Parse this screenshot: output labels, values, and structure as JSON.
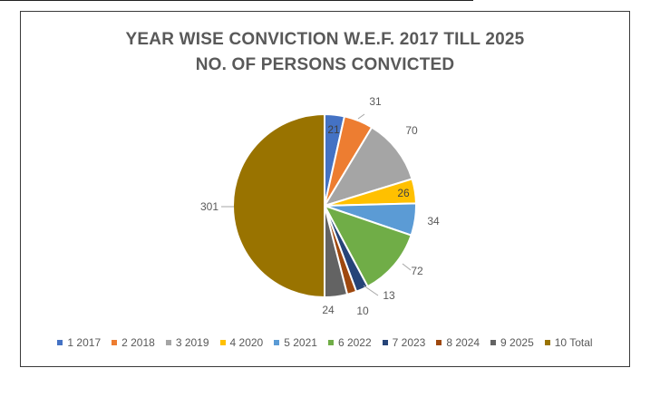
{
  "chart_data": {
    "type": "pie",
    "title": "YEAR WISE CONVICTION W.E.F. 2017 TILL 2025",
    "subtitle": "NO. OF PERSONS CONVICTED",
    "categories": [
      "1 2017",
      "2 2018",
      "3 2019",
      "4 2020",
      "5 2021",
      "6 2022",
      "7 2023",
      "8 2024",
      "9 2025",
      "10 Total"
    ],
    "values": [
      21,
      31,
      70,
      26,
      34,
      72,
      13,
      10,
      24,
      301
    ],
    "colors": [
      "#4472C4",
      "#ED7D31",
      "#A5A5A5",
      "#FFC000",
      "#5B9BD5",
      "#70AD47",
      "#264478",
      "#9E480E",
      "#636363",
      "#997300"
    ],
    "legend_position": "bottom"
  }
}
